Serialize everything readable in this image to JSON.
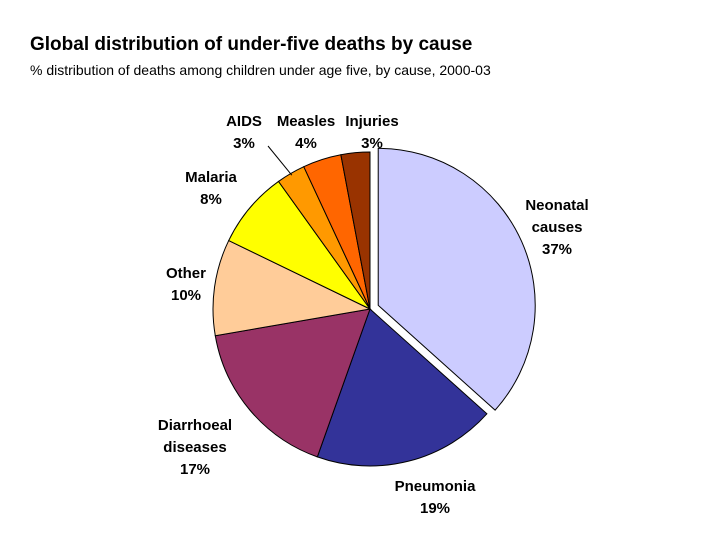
{
  "chart_data": {
    "type": "pie",
    "title": "Global distribution of under-five deaths by cause",
    "subtitle": "% distribution of deaths among children under age five, by cause, 2000-03",
    "slices": [
      {
        "label": "Neonatal causes",
        "label_lines": [
          "Neonatal",
          "causes"
        ],
        "value": 37,
        "value_label": "37%",
        "color": "#ccccff",
        "exploded": true
      },
      {
        "label": "Pneumonia",
        "label_lines": [
          "Pneumonia"
        ],
        "value": 19,
        "value_label": "19%",
        "color": "#333399",
        "exploded": false
      },
      {
        "label": "Diarrhoeal diseases",
        "label_lines": [
          "Diarrhoeal",
          "diseases"
        ],
        "value": 17,
        "value_label": "17%",
        "color": "#993366",
        "exploded": false
      },
      {
        "label": "Other",
        "label_lines": [
          "Other"
        ],
        "value": 10,
        "value_label": "10%",
        "color": "#ffcc99",
        "exploded": false
      },
      {
        "label": "Malaria",
        "label_lines": [
          "Malaria"
        ],
        "value": 8,
        "value_label": "8%",
        "color": "#ffff00",
        "exploded": false
      },
      {
        "label": "AIDS",
        "label_lines": [
          "AIDS"
        ],
        "value": 3,
        "value_label": "3%",
        "color": "#ff9900",
        "exploded": false
      },
      {
        "label": "Measles",
        "label_lines": [
          "Measles"
        ],
        "value": 4,
        "value_label": "4%",
        "color": "#ff6600",
        "exploded": false
      },
      {
        "label": "Injuries",
        "label_lines": [
          "Injuries"
        ],
        "value": 3,
        "value_label": "3%",
        "color": "#993300",
        "exploded": false
      }
    ]
  }
}
